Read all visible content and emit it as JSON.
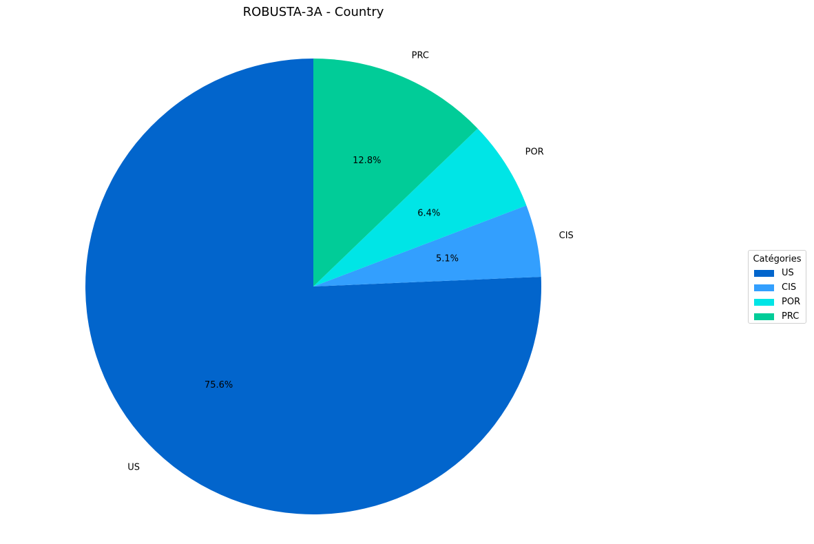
{
  "chart_data": {
    "type": "pie",
    "title": "ROBUSTA-3A - Country",
    "categories": [
      "US",
      "CIS",
      "POR",
      "PRC"
    ],
    "values": [
      75.6,
      5.1,
      6.4,
      12.8
    ],
    "value_labels": [
      "75.6%",
      "5.1%",
      "6.4%",
      "12.8%"
    ],
    "colors": [
      "#0265cc",
      "#339ffe",
      "#00e5e6",
      "#01cc98"
    ],
    "start_angle_deg": 90,
    "direction": "counterclockwise",
    "legend": {
      "title": "Catégories",
      "placement": "right"
    }
  }
}
